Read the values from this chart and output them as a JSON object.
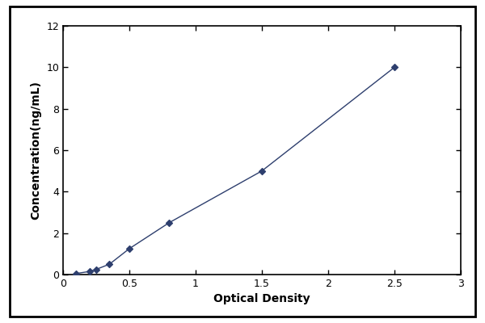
{
  "x_data": [
    0.1,
    0.2,
    0.25,
    0.35,
    0.5,
    0.8,
    1.5,
    2.5
  ],
  "y_data": [
    0.05,
    0.15,
    0.25,
    0.5,
    1.25,
    2.5,
    5.0,
    10.0
  ],
  "line_color": "#2e3f6e",
  "marker_color": "#2e3f6e",
  "marker_style": "D",
  "marker_size": 4,
  "line_width": 1.0,
  "xlabel": "Optical Density",
  "ylabel": "Concentration(ng/mL)",
  "xlim": [
    0,
    3
  ],
  "ylim": [
    0,
    12
  ],
  "xticks": [
    0,
    0.5,
    1,
    1.5,
    2,
    2.5,
    3
  ],
  "yticks": [
    0,
    2,
    4,
    6,
    8,
    10,
    12
  ],
  "xtick_labels": [
    "0",
    "0.5",
    "1",
    "1.5",
    "2",
    "2.5",
    "3"
  ],
  "ytick_labels": [
    "0",
    "2",
    "4",
    "6",
    "8",
    "10",
    "12"
  ],
  "background_color": "#ffffff",
  "figure_background": "#ffffff",
  "border_color": "#000000",
  "font_size_label": 10,
  "font_size_tick": 9
}
